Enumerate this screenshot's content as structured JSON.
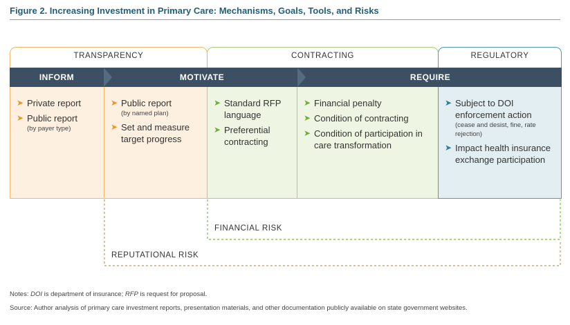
{
  "figure": {
    "title": "Figure 2. Increasing Investment in Primary Care: Mechanisms, Goals, Tools, and Risks"
  },
  "categories": {
    "transparency": "TRANSPARENCY",
    "contracting": "CONTRACTING",
    "regulatory": "REGULATORY"
  },
  "band": {
    "inform": "INFORM",
    "motivate": "MOTIVATE",
    "require": "REQUIRE"
  },
  "columns": {
    "inform": [
      {
        "text": "Private report",
        "sub": ""
      },
      {
        "text": "Public report",
        "sub": "(by payer type)"
      }
    ],
    "motivate": [
      {
        "text": "Public report",
        "sub": "(by named plan)"
      },
      {
        "text": "Set and measure target progress",
        "sub": ""
      }
    ],
    "contracting_tools": [
      {
        "text": "Standard RFP language",
        "sub": ""
      },
      {
        "text": "Preferential contracting",
        "sub": ""
      }
    ],
    "require_contracting": [
      {
        "text": "Financial penalty",
        "sub": ""
      },
      {
        "text": "Condition of contracting",
        "sub": ""
      },
      {
        "text": "Condition of participation in care transformation",
        "sub": ""
      }
    ],
    "regulatory": [
      {
        "text": "Subject to DOI enforcement action",
        "sub": "(cease and desist, fine, rate rejection)"
      },
      {
        "text": "Impact health insurance exchange participation",
        "sub": ""
      }
    ]
  },
  "risks": {
    "financial": "FINANCIAL RISK",
    "reputational": "REPUTATIONAL RISK"
  },
  "notes": {
    "notes_prefix": "Notes: ",
    "doi_term": "DOI",
    "doi_def": " is department of insurance; ",
    "rfp_term": "RFP",
    "rfp_def": " is request for proposal.",
    "source": "Source: Author analysis of primary care investment reports, presentation materials, and other documentation publicly available on state government websites."
  },
  "colors": {
    "transparency_border": "#f2b865",
    "transparency_fill": "#fdf0e0",
    "transparency_arrow": "#e8982a",
    "contracting_border": "#a8d079",
    "contracting_fill": "#eef6e3",
    "contracting_arrow": "#6fae3d",
    "regulatory_border": "#4f9bb3",
    "regulatory_fill": "#e3eef2",
    "regulatory_arrow": "#2e7c99",
    "band": "#3d4f62",
    "title": "#1f5f7a"
  }
}
